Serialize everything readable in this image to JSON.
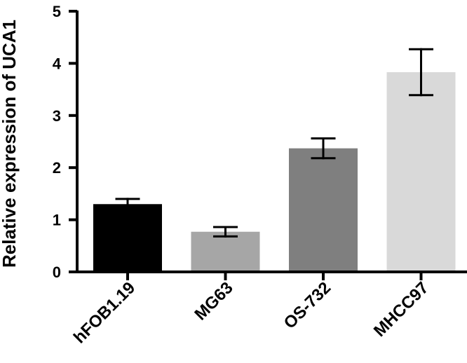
{
  "chart_data": {
    "type": "bar",
    "title": "",
    "xlabel": "",
    "ylabel": "Relative expression of UCA1",
    "categories": [
      "hFOB1.19",
      "MG63",
      "OS-732",
      "MHCC97"
    ],
    "values": [
      1.3,
      0.77,
      2.37,
      3.83
    ],
    "errors": [
      0.1,
      0.09,
      0.19,
      0.44
    ],
    "bar_colors": [
      "#000000",
      "#a6a6a6",
      "#7f7f7f",
      "#d9d9d9"
    ],
    "ylim": [
      0,
      5
    ],
    "yticks": [
      0,
      1,
      2,
      3,
      4,
      5
    ],
    "grid": false,
    "legend": "none"
  }
}
